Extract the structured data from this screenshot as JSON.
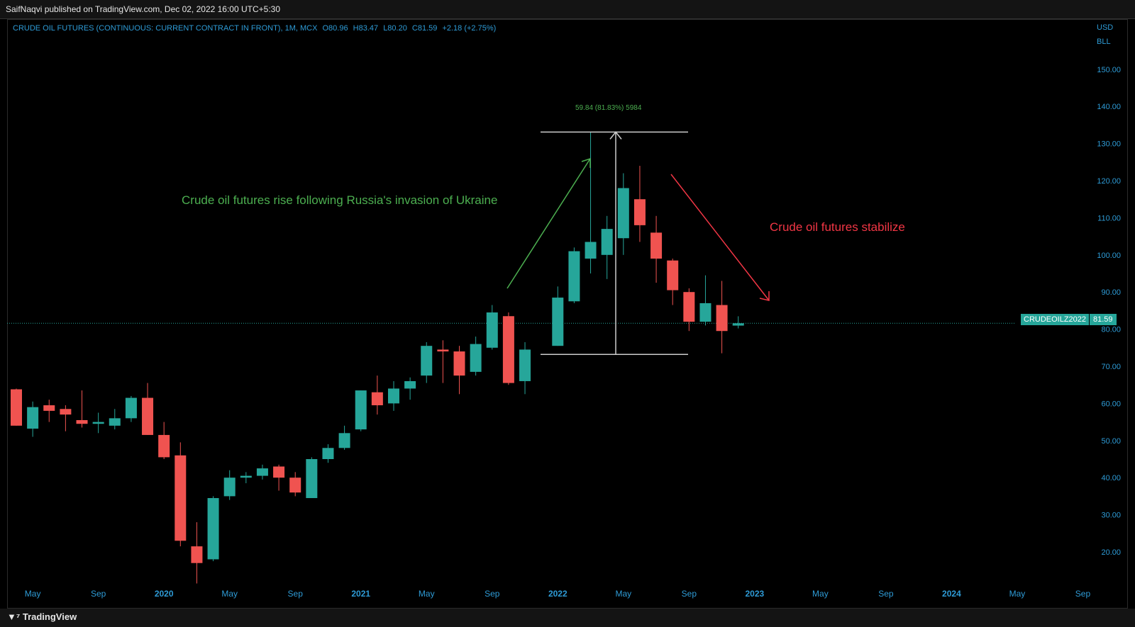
{
  "header": {
    "publisher": "SaifNaqvi published on TradingView.com, Dec 02, 2022 16:00 UTC+5:30"
  },
  "symbol": {
    "name": "CRUDE OIL FUTURES (CONTINUOUS: CURRENT CONTRACT IN FRONT), 1M, MCX",
    "open": "O80.96",
    "high": "H83.47",
    "low": "L80.20",
    "close": "C81.59",
    "change": "+2.18 (+2.75%)"
  },
  "axis": {
    "currency": "USD",
    "unit": "BLL"
  },
  "annotations": {
    "rise": "Crude oil futures rise following Russia's invasion of Ukraine",
    "stabilize": "Crude oil futures stabilize",
    "measure": "59.84 (81.83%) 5984"
  },
  "last_price": {
    "label": "CRUDEOILZ2022",
    "value": "81.59"
  },
  "footer": {
    "brand": "TradingView"
  },
  "colors": {
    "up": "#26a69a",
    "down": "#f05350",
    "axis_text": "#2e9bd6",
    "grid_line": "#26a69a",
    "green_text": "#4caf50",
    "red_text": "#f23645"
  },
  "chart_data": {
    "type": "candlestick",
    "timeframe": "1M",
    "y_axis": {
      "ticks": [
        "20.00",
        "30.00",
        "40.00",
        "50.00",
        "60.00",
        "70.00",
        "80.00",
        "90.00",
        "100.00",
        "110.00",
        "120.00",
        "130.00",
        "140.00",
        "150.00"
      ],
      "range": [
        10,
        158
      ]
    },
    "x_axis": {
      "labels": [
        "May",
        "Sep",
        "2020",
        "May",
        "Sep",
        "2021",
        "May",
        "Sep",
        "2022",
        "May",
        "Sep",
        "2023",
        "May",
        "Sep",
        "2024",
        "May",
        "Sep"
      ]
    },
    "candles": [
      {
        "month": "2019-04",
        "o": 63.8,
        "h": 64.0,
        "l": 54.0,
        "c": 54.0
      },
      {
        "month": "2019-05",
        "o": 53.2,
        "h": 60.5,
        "l": 51.0,
        "c": 59.0
      },
      {
        "month": "2019-06",
        "o": 59.5,
        "h": 61.0,
        "l": 55.0,
        "c": 58.0
      },
      {
        "month": "2019-07",
        "o": 58.5,
        "h": 59.5,
        "l": 52.5,
        "c": 57.0
      },
      {
        "month": "2019-08",
        "o": 55.5,
        "h": 63.5,
        "l": 53.5,
        "c": 54.5
      },
      {
        "month": "2019-09",
        "o": 54.5,
        "h": 57.5,
        "l": 52.0,
        "c": 55.0
      },
      {
        "month": "2019-10",
        "o": 54.0,
        "h": 58.5,
        "l": 53.0,
        "c": 56.0
      },
      {
        "month": "2019-11",
        "o": 56.0,
        "h": 62.0,
        "l": 55.0,
        "c": 61.5
      },
      {
        "month": "2019-12",
        "o": 61.5,
        "h": 65.5,
        "l": 51.5,
        "c": 51.5
      },
      {
        "month": "2020-01",
        "o": 51.5,
        "h": 55.0,
        "l": 45.0,
        "c": 45.5
      },
      {
        "month": "2020-02",
        "o": 46.0,
        "h": 49.5,
        "l": 21.5,
        "c": 23.0
      },
      {
        "month": "2020-03",
        "o": 21.5,
        "h": 28.0,
        "l": 11.5,
        "c": 17.0
      },
      {
        "month": "2020-04",
        "o": 18.0,
        "h": 35.0,
        "l": 17.5,
        "c": 34.5
      },
      {
        "month": "2020-05",
        "o": 35.0,
        "h": 42.0,
        "l": 34.0,
        "c": 40.0
      },
      {
        "month": "2020-06",
        "o": 40.0,
        "h": 41.5,
        "l": 38.5,
        "c": 40.5
      },
      {
        "month": "2020-07",
        "o": 40.5,
        "h": 43.5,
        "l": 39.5,
        "c": 42.5
      },
      {
        "month": "2020-08",
        "o": 43.0,
        "h": 43.5,
        "l": 36.5,
        "c": 40.0
      },
      {
        "month": "2020-09",
        "o": 40.0,
        "h": 41.5,
        "l": 35.0,
        "c": 36.0
      },
      {
        "month": "2020-10",
        "o": 34.5,
        "h": 45.5,
        "l": 34.5,
        "c": 45.0
      },
      {
        "month": "2020-11",
        "o": 45.0,
        "h": 49.0,
        "l": 44.0,
        "c": 48.0
      },
      {
        "month": "2020-12",
        "o": 48.0,
        "h": 54.0,
        "l": 47.5,
        "c": 52.0
      },
      {
        "month": "2021-01",
        "o": 53.0,
        "h": 63.5,
        "l": 52.5,
        "c": 63.5
      },
      {
        "month": "2021-02",
        "o": 63.0,
        "h": 67.5,
        "l": 57.0,
        "c": 59.5
      },
      {
        "month": "2021-03",
        "o": 60.0,
        "h": 66.0,
        "l": 58.0,
        "c": 64.0
      },
      {
        "month": "2021-04",
        "o": 64.0,
        "h": 67.0,
        "l": 61.0,
        "c": 66.0
      },
      {
        "month": "2021-05",
        "o": 67.5,
        "h": 76.5,
        "l": 65.5,
        "c": 75.5
      },
      {
        "month": "2021-06",
        "o": 74.5,
        "h": 77.0,
        "l": 65.5,
        "c": 74.0
      },
      {
        "month": "2021-07",
        "o": 74.0,
        "h": 75.5,
        "l": 62.5,
        "c": 67.5
      },
      {
        "month": "2021-08",
        "o": 68.5,
        "h": 78.0,
        "l": 67.5,
        "c": 76.0
      },
      {
        "month": "2021-09",
        "o": 75.0,
        "h": 86.5,
        "l": 74.5,
        "c": 84.5
      },
      {
        "month": "2021-10",
        "o": 83.5,
        "h": 84.5,
        "l": 65.0,
        "c": 65.5
      },
      {
        "month": "2021-11",
        "o": 66.0,
        "h": 76.5,
        "l": 62.5,
        "c": 74.5
      },
      {
        "month": "2022-01",
        "o": 75.5,
        "h": 91.5,
        "l": 75.5,
        "c": 88.5
      },
      {
        "month": "2022-02",
        "o": 87.5,
        "h": 102.0,
        "l": 87.0,
        "c": 101.0
      },
      {
        "month": "2022-03",
        "o": 99.0,
        "h": 133.0,
        "l": 95.0,
        "c": 103.5
      },
      {
        "month": "2022-04",
        "o": 100.0,
        "h": 110.5,
        "l": 93.5,
        "c": 107.0
      },
      {
        "month": "2022-05",
        "o": 104.5,
        "h": 122.0,
        "l": 100.0,
        "c": 118.0
      },
      {
        "month": "2022-06",
        "o": 115.0,
        "h": 124.0,
        "l": 103.5,
        "c": 108.0
      },
      {
        "month": "2022-07",
        "o": 106.0,
        "h": 110.5,
        "l": 92.5,
        "c": 99.0
      },
      {
        "month": "2022-08",
        "o": 98.5,
        "h": 99.0,
        "l": 86.5,
        "c": 90.5
      },
      {
        "month": "2022-09",
        "o": 90.0,
        "h": 91.0,
        "l": 79.5,
        "c": 82.0
      },
      {
        "month": "2022-10",
        "o": 82.0,
        "h": 94.5,
        "l": 81.0,
        "c": 87.0
      },
      {
        "month": "2022-11",
        "o": 86.5,
        "h": 93.0,
        "l": 73.5,
        "c": 79.5
      },
      {
        "month": "2022-12",
        "o": 80.96,
        "h": 83.47,
        "l": 80.2,
        "c": 81.59
      }
    ],
    "measure": {
      "low": 73.2,
      "high": 133.1
    }
  }
}
